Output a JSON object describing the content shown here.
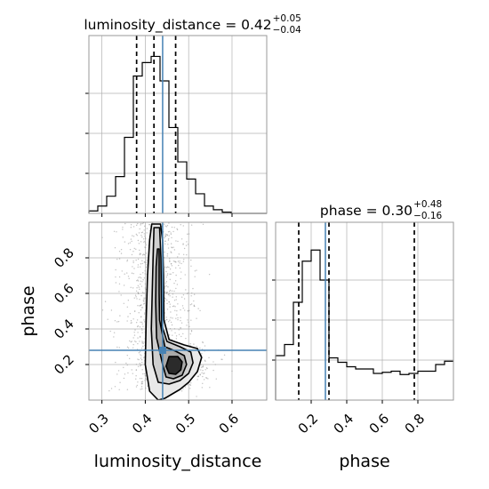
{
  "chart_data": {
    "type": "corner",
    "parameters": [
      "luminosity_distance",
      "phase"
    ],
    "truths": {
      "luminosity_distance": 0.44,
      "phase": 0.28
    },
    "colors": {
      "hist": "#000000",
      "truth": "#4682b4",
      "grid": "#b0b0b0",
      "scatter": "#9a9a9a",
      "frame": "#999999"
    },
    "grid": true,
    "luminosity_distance": {
      "title_text": "luminosity_distance = 0.42",
      "title_sup": "+0.05",
      "title_sub": "−0.04",
      "median": 0.42,
      "quantiles": [
        0.38,
        0.42,
        0.47
      ],
      "range": [
        0.27,
        0.68
      ],
      "ticks": [
        0.3,
        0.4,
        0.5,
        0.6
      ],
      "tick_labels": [
        "0.3",
        "0.4",
        "0.5",
        "0.6"
      ],
      "xlabel": "luminosity_distance",
      "hist_edges": [
        0.27,
        0.2905,
        0.311,
        0.3315,
        0.352,
        0.3725,
        0.393,
        0.4135,
        0.434,
        0.4545,
        0.475,
        0.4955,
        0.516,
        0.5365,
        0.557,
        0.5775,
        0.598,
        0.6185,
        0.639,
        0.6595,
        0.68
      ],
      "hist_counts": [
        2,
        6,
        14,
        30,
        62,
        112,
        123,
        128,
        108,
        70,
        42,
        28,
        16,
        6,
        3,
        1,
        0,
        0,
        0,
        0
      ],
      "hist_ymax": 145
    },
    "phase": {
      "title_text": "phase = 0.30",
      "title_sup": "+0.48",
      "title_sub": "−0.16",
      "median": 0.3,
      "quantiles": [
        0.13,
        0.3,
        0.78
      ],
      "range": [
        0.0,
        1.0
      ],
      "ticks": [
        0.2,
        0.4,
        0.6,
        0.8
      ],
      "tick_labels": [
        "0.2",
        "0.4",
        "0.6",
        "0.8"
      ],
      "xlabel": "phase",
      "hist_edges": [
        0.0,
        0.05,
        0.1,
        0.15,
        0.2,
        0.25,
        0.3,
        0.35,
        0.4,
        0.45,
        0.5,
        0.55,
        0.6,
        0.65,
        0.7,
        0.75,
        0.8,
        0.85,
        0.9,
        0.95,
        1.0
      ],
      "hist_counts": [
        40,
        50,
        88,
        125,
        135,
        108,
        38,
        34,
        30,
        28,
        28,
        24,
        25,
        26,
        23,
        24,
        26,
        26,
        32,
        35
      ],
      "hist_ymax": 160
    },
    "joint": {
      "xlabel": "luminosity_distance",
      "ylabel": "phase",
      "x_range": [
        0.27,
        0.68
      ],
      "y_range": [
        0.0,
        1.0
      ],
      "x_ticks": [
        0.3,
        0.4,
        0.5,
        0.6
      ],
      "x_tick_labels": [
        "0.3",
        "0.4",
        "0.5",
        "0.6"
      ],
      "y_ticks": [
        0.2,
        0.4,
        0.6,
        0.8
      ],
      "y_tick_labels": [
        "0.2",
        "0.4",
        "0.6",
        "0.8"
      ],
      "contours": [
        [
          [
            0.415,
            0.99
          ],
          [
            0.435,
            0.99
          ],
          [
            0.44,
            0.9
          ],
          [
            0.442,
            0.7
          ],
          [
            0.443,
            0.45
          ],
          [
            0.455,
            0.34
          ],
          [
            0.49,
            0.31
          ],
          [
            0.52,
            0.29
          ],
          [
            0.53,
            0.24
          ],
          [
            0.52,
            0.16
          ],
          [
            0.5,
            0.1
          ],
          [
            0.48,
            0.06
          ],
          [
            0.445,
            0.01
          ],
          [
            0.43,
            0.0
          ],
          [
            0.41,
            0.05
          ],
          [
            0.4,
            0.2
          ],
          [
            0.402,
            0.45
          ],
          [
            0.405,
            0.7
          ],
          [
            0.41,
            0.9
          ]
        ],
        [
          [
            0.42,
            0.97
          ],
          [
            0.433,
            0.97
          ],
          [
            0.436,
            0.8
          ],
          [
            0.437,
            0.55
          ],
          [
            0.438,
            0.42
          ],
          [
            0.45,
            0.33
          ],
          [
            0.48,
            0.3
          ],
          [
            0.505,
            0.27
          ],
          [
            0.51,
            0.21
          ],
          [
            0.5,
            0.15
          ],
          [
            0.48,
            0.11
          ],
          [
            0.455,
            0.09
          ],
          [
            0.43,
            0.1
          ],
          [
            0.418,
            0.2
          ],
          [
            0.414,
            0.4
          ],
          [
            0.416,
            0.6
          ],
          [
            0.418,
            0.8
          ]
        ],
        [
          [
            0.428,
            0.85
          ],
          [
            0.432,
            0.85
          ],
          [
            0.432,
            0.6
          ],
          [
            0.433,
            0.45
          ],
          [
            0.445,
            0.3
          ],
          [
            0.47,
            0.275
          ],
          [
            0.49,
            0.25
          ],
          [
            0.495,
            0.2
          ],
          [
            0.485,
            0.14
          ],
          [
            0.465,
            0.12
          ],
          [
            0.448,
            0.13
          ],
          [
            0.44,
            0.2
          ],
          [
            0.426,
            0.35
          ],
          [
            0.424,
            0.55
          ],
          [
            0.425,
            0.75
          ]
        ],
        [
          [
            0.455,
            0.245
          ],
          [
            0.475,
            0.245
          ],
          [
            0.485,
            0.215
          ],
          [
            0.482,
            0.17
          ],
          [
            0.47,
            0.145
          ],
          [
            0.455,
            0.15
          ],
          [
            0.448,
            0.19
          ]
        ]
      ]
    }
  }
}
